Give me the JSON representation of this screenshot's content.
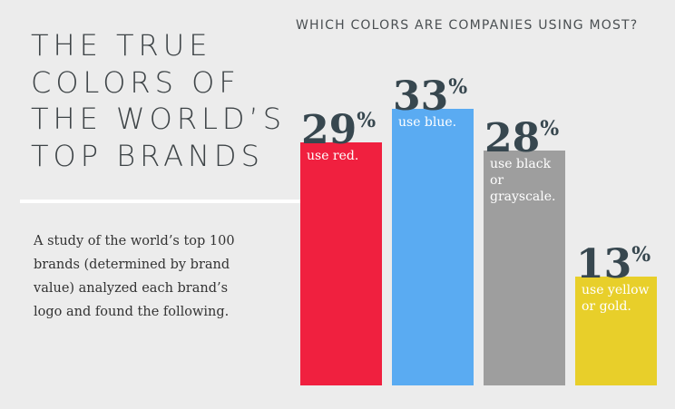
{
  "chart_data": {
    "type": "bar",
    "title": [
      "THE TRUE",
      "COLORS OF",
      "THE WORLD’S",
      "TOP BRANDS"
    ],
    "subtitle": "WHICH COLORS ARE COMPANIES USING MOST?",
    "description": "A study of the world’s top 100 brands (determined by brand value) analyzed each brand’s logo and found the following.",
    "categories": [
      "use red.",
      "use blue.",
      "use black or grayscale.",
      "use yellow or gold."
    ],
    "values": [
      29,
      33,
      28,
      13
    ],
    "value_labels": [
      "29%",
      "33%",
      "28%",
      "13%"
    ],
    "colors": [
      "#f0203f",
      "#5aabf2",
      "#9e9e9e",
      "#e8cf2a"
    ]
  }
}
